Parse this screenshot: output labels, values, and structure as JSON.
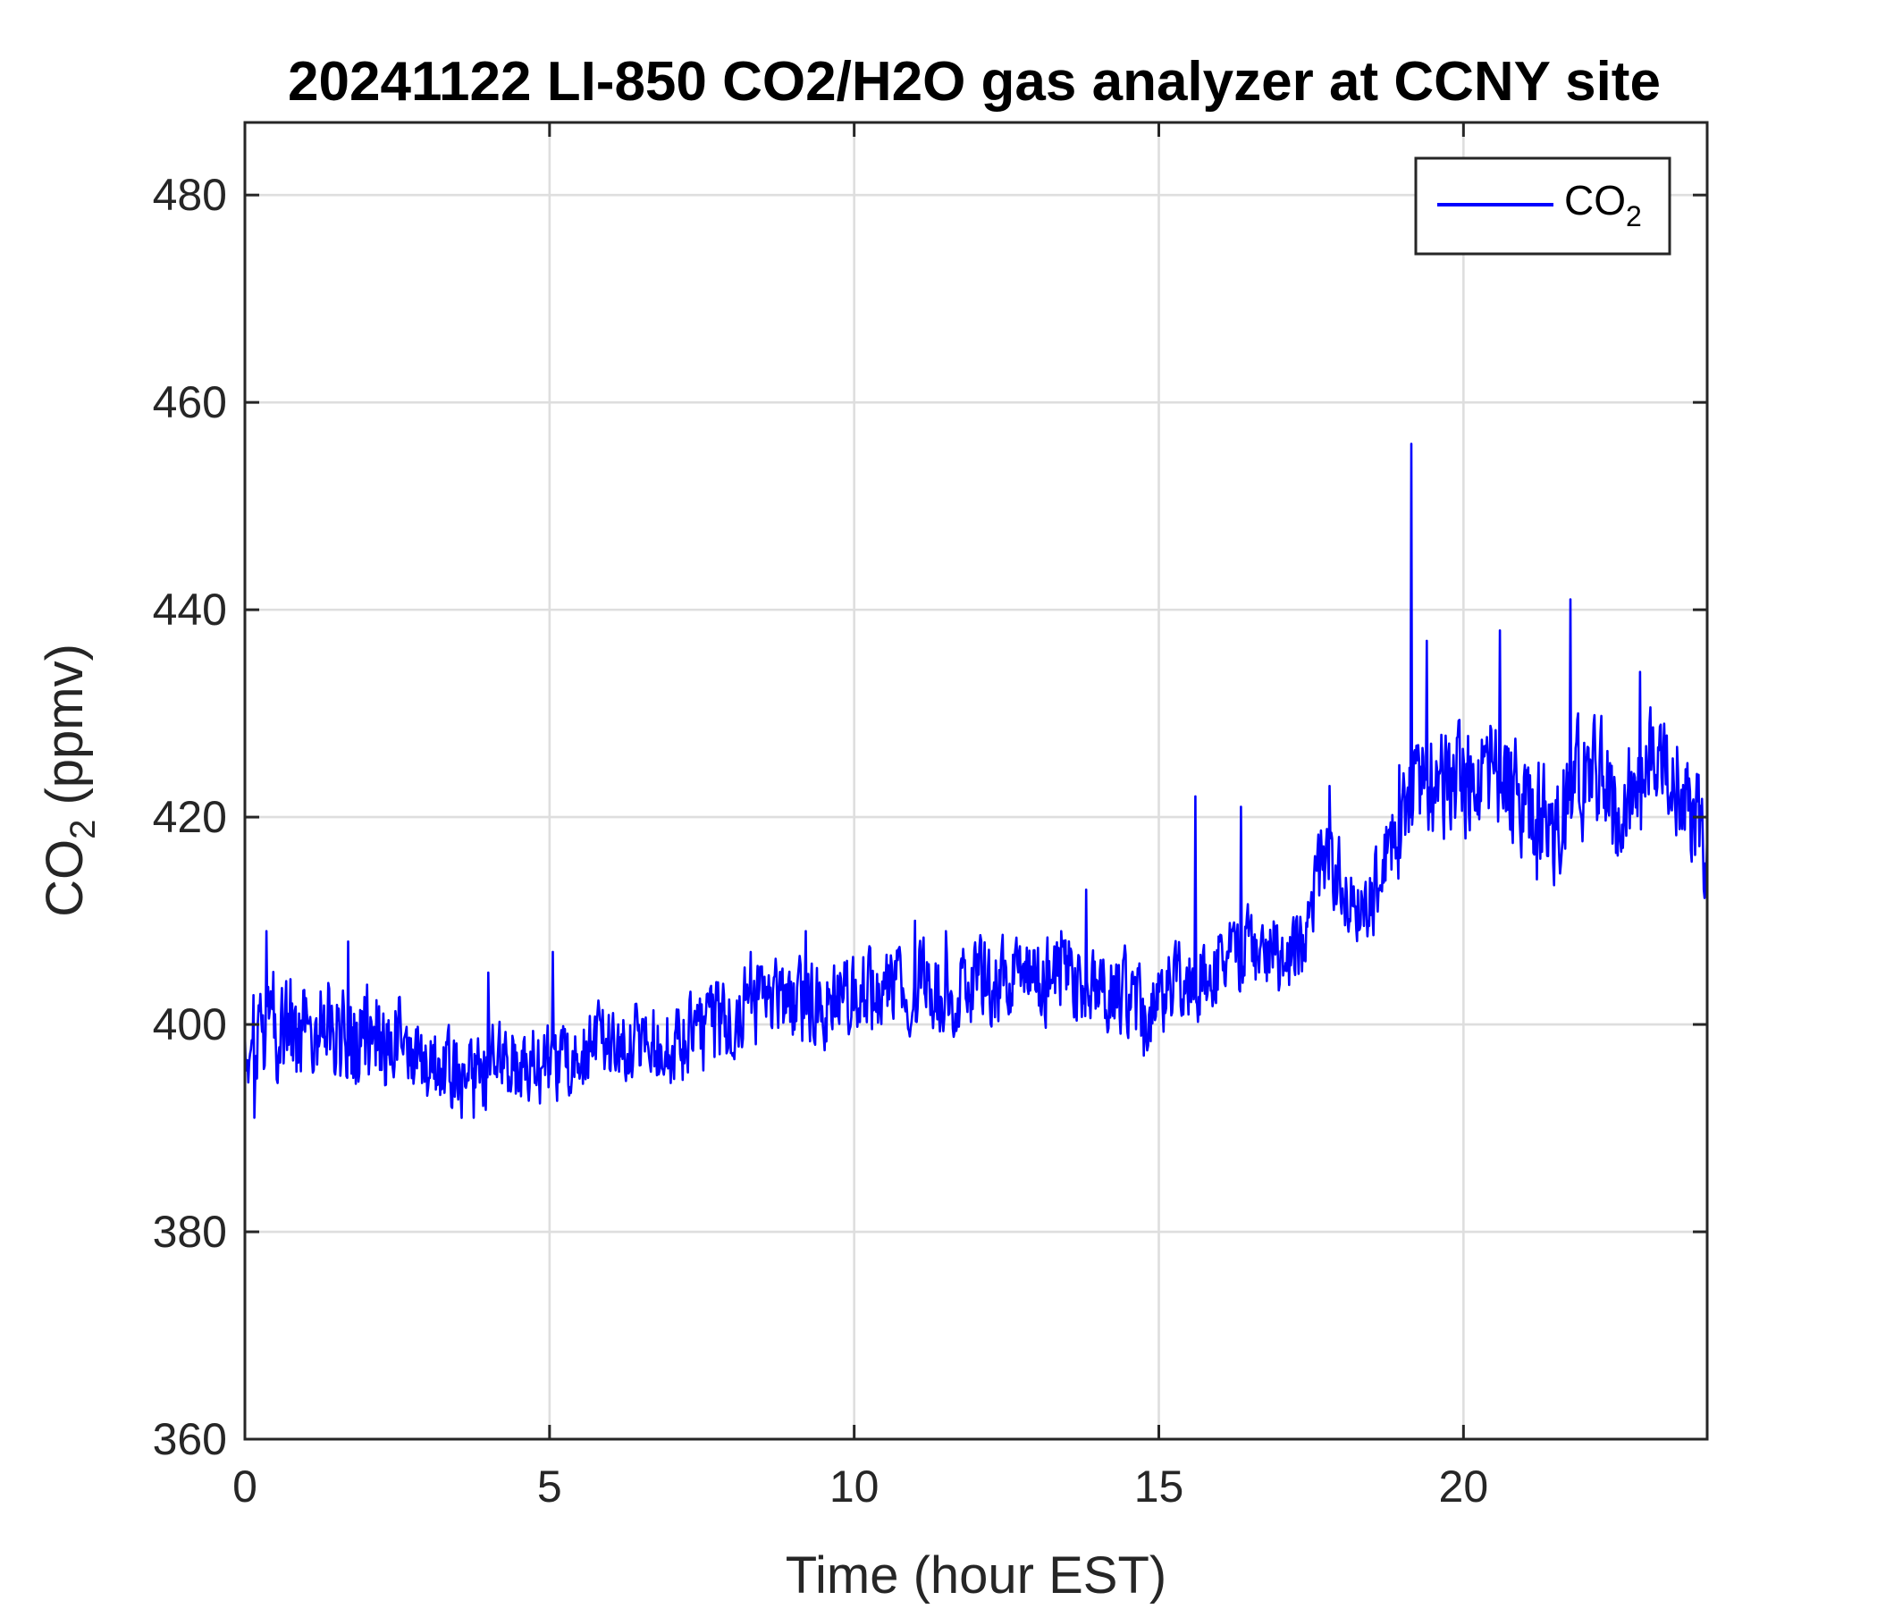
{
  "chart_data": {
    "type": "line",
    "title": "20241122 LI-850 CO2/H2O gas analyzer at CCNY site",
    "xlabel": "Time (hour EST)",
    "ylabel": {
      "main": "CO",
      "sub": "2",
      "rest": " (ppmv)"
    },
    "xlim": [
      0,
      24
    ],
    "ylim": [
      360,
      487
    ],
    "xticks": [
      "0",
      "5",
      "10",
      "15",
      "20"
    ],
    "yticks": [
      "360",
      "380",
      "400",
      "420",
      "440",
      "460",
      "480"
    ],
    "xtick_values": [
      0,
      5,
      10,
      15,
      20
    ],
    "ytick_values": [
      360,
      380,
      400,
      420,
      440,
      460,
      480
    ],
    "grid": true,
    "legend": {
      "placement": "top-right",
      "entry": {
        "main": "CO",
        "sub": "2"
      }
    },
    "series": [
      {
        "name": "CO2",
        "color": "#0000ff",
        "noise_amplitude": 3.5,
        "anchors": [
          [
            0.0,
            397
          ],
          [
            0.5,
            400
          ],
          [
            1.0,
            399
          ],
          [
            1.5,
            399
          ],
          [
            2.0,
            399
          ],
          [
            2.5,
            398
          ],
          [
            3.0,
            396
          ],
          [
            3.5,
            395
          ],
          [
            4.0,
            396
          ],
          [
            4.5,
            396
          ],
          [
            5.0,
            396
          ],
          [
            5.4,
            396
          ],
          [
            5.6,
            398
          ],
          [
            6.0,
            398
          ],
          [
            6.5,
            398
          ],
          [
            7.0,
            398
          ],
          [
            7.5,
            399
          ],
          [
            8.0,
            401
          ],
          [
            8.5,
            402
          ],
          [
            9.0,
            402
          ],
          [
            9.5,
            402
          ],
          [
            10.0,
            403
          ],
          [
            10.5,
            403
          ],
          [
            11.0,
            404
          ],
          [
            11.5,
            403
          ],
          [
            12.0,
            404
          ],
          [
            12.5,
            404
          ],
          [
            13.0,
            404
          ],
          [
            13.5,
            405
          ],
          [
            14.0,
            404
          ],
          [
            14.5,
            403
          ],
          [
            14.8,
            400
          ],
          [
            15.0,
            403
          ],
          [
            15.5,
            404
          ],
          [
            16.0,
            406
          ],
          [
            16.5,
            407
          ],
          [
            17.0,
            407
          ],
          [
            17.4,
            408
          ],
          [
            17.7,
            416
          ],
          [
            18.0,
            414
          ],
          [
            18.3,
            412
          ],
          [
            18.6,
            413
          ],
          [
            18.8,
            418
          ],
          [
            19.1,
            422
          ],
          [
            19.3,
            424
          ],
          [
            19.6,
            424
          ],
          [
            20.0,
            423
          ],
          [
            20.5,
            425
          ],
          [
            20.8,
            423
          ],
          [
            21.2,
            420
          ],
          [
            21.5,
            419
          ],
          [
            21.8,
            423
          ],
          [
            22.0,
            424
          ],
          [
            22.3,
            423
          ],
          [
            22.6,
            419
          ],
          [
            23.0,
            427
          ],
          [
            23.4,
            426
          ],
          [
            23.8,
            420
          ],
          [
            24.0,
            417
          ]
        ],
        "spikes": [
          [
            0.35,
            409
          ],
          [
            1.7,
            408
          ],
          [
            4.0,
            405
          ],
          [
            5.05,
            407
          ],
          [
            8.3,
            407
          ],
          [
            9.2,
            409
          ],
          [
            11.0,
            410
          ],
          [
            11.5,
            409
          ],
          [
            13.4,
            409
          ],
          [
            13.8,
            413
          ],
          [
            15.6,
            422
          ],
          [
            16.35,
            421
          ],
          [
            17.8,
            423
          ],
          [
            18.95,
            425
          ],
          [
            19.15,
            456
          ],
          [
            19.4,
            437
          ],
          [
            20.6,
            438
          ],
          [
            21.75,
            441
          ],
          [
            22.9,
            434
          ],
          [
            0.15,
            391
          ],
          [
            3.75,
            391
          ],
          [
            14.75,
            397
          ],
          [
            21.2,
            414
          ],
          [
            23.95,
            413
          ]
        ]
      }
    ]
  }
}
